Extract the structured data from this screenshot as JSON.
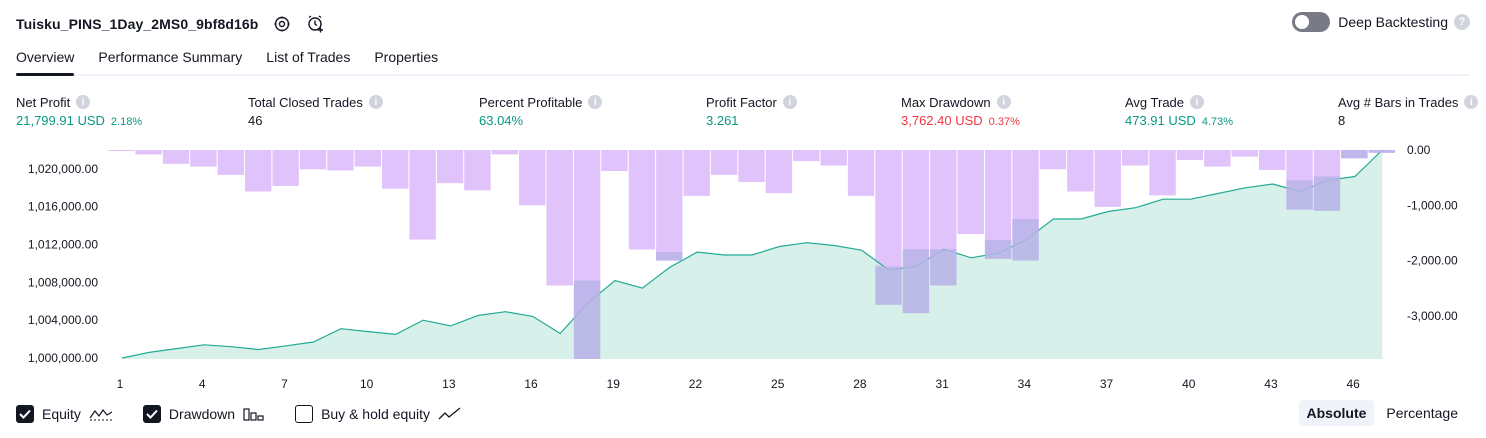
{
  "header": {
    "strategy_name": "Tuisku_PINS_1Day_2MS0_9bf8d16b",
    "icons": [
      "settings-icon",
      "add-alert-icon"
    ],
    "deep_backtesting_label": "Deep Backtesting",
    "deep_backtesting_enabled": false
  },
  "tabs": [
    {
      "label": "Overview",
      "active": true
    },
    {
      "label": "Performance Summary",
      "active": false
    },
    {
      "label": "List of Trades",
      "active": false
    },
    {
      "label": "Properties",
      "active": false
    }
  ],
  "metrics": [
    {
      "title": "Net Profit",
      "value": "21,799.91 USD",
      "pct": "2.18%",
      "color": "#089981"
    },
    {
      "title": "Total Closed Trades",
      "value": "46",
      "pct": "",
      "color": "#131722"
    },
    {
      "title": "Percent Profitable",
      "value": "63.04%",
      "pct": "",
      "color": "#089981"
    },
    {
      "title": "Profit Factor",
      "value": "3.261",
      "pct": "",
      "color": "#089981"
    },
    {
      "title": "Max Drawdown",
      "value": "3,762.40 USD",
      "pct": "0.37%",
      "color": "#f23645"
    },
    {
      "title": "Avg Trade",
      "value": "473.91 USD",
      "pct": "4.73%",
      "color": "#089981"
    },
    {
      "title": "Avg # Bars in Trades",
      "value": "8",
      "pct": "",
      "color": "#131722"
    }
  ],
  "legend": {
    "equity_label": "Equity",
    "equity_checked": true,
    "drawdown_label": "Drawdown",
    "drawdown_checked": true,
    "buyhold_label": "Buy & hold equity",
    "buyhold_checked": false
  },
  "mode": {
    "absolute_label": "Absolute",
    "percentage_label": "Percentage",
    "active": "Absolute"
  },
  "colors": {
    "equity_line": "#22ab94",
    "equity_fill": "#c9ebe3",
    "drawdown": "#e1c3fb",
    "drawdown_overlap": "#b8b4e8"
  },
  "chart_data": {
    "type": "line+bar",
    "x": [
      1,
      2,
      3,
      4,
      5,
      6,
      7,
      8,
      9,
      10,
      11,
      12,
      13,
      14,
      15,
      16,
      17,
      18,
      19,
      20,
      21,
      22,
      23,
      24,
      25,
      26,
      27,
      28,
      29,
      30,
      31,
      32,
      33,
      34,
      35,
      36,
      37,
      38,
      39,
      40,
      41,
      42,
      43,
      44,
      45,
      46,
      47
    ],
    "x_ticks": [
      "1",
      "4",
      "7",
      "10",
      "13",
      "16",
      "19",
      "22",
      "25",
      "28",
      "31",
      "34",
      "37",
      "40",
      "43",
      "46"
    ],
    "series": [
      {
        "name": "Equity",
        "axis": "left",
        "values": [
          1000000,
          1000600,
          1001000,
          1001400,
          1001200,
          1000900,
          1001300,
          1001700,
          1003100,
          1002800,
          1002500,
          1004000,
          1003400,
          1004500,
          1004900,
          1004400,
          1002600,
          1005800,
          1008200,
          1007400,
          1009600,
          1011200,
          1010900,
          1010900,
          1011800,
          1012200,
          1011900,
          1011400,
          1009300,
          1009700,
          1011500,
          1010600,
          1011100,
          1012500,
          1014700,
          1014700,
          1015500,
          1015900,
          1016800,
          1016800,
          1017400,
          1018000,
          1018400,
          1017600,
          1018800,
          1019200,
          1022000
        ]
      },
      {
        "name": "Drawdown",
        "axis": "right",
        "values": [
          0,
          -80,
          -250,
          -300,
          -450,
          -750,
          -650,
          -350,
          -370,
          -300,
          -700,
          -1620,
          -600,
          -730,
          -80,
          -1000,
          -2450,
          -3780,
          -380,
          -1800,
          -2000,
          -830,
          -450,
          -580,
          -780,
          -200,
          -280,
          -830,
          -2800,
          -2950,
          -2450,
          -1520,
          -1970,
          -2000,
          -350,
          -750,
          -1030,
          -280,
          -820,
          -180,
          -300,
          -120,
          -360,
          -1080,
          -1100,
          -150,
          -50
        ]
      }
    ],
    "left_ticks": [
      "1,000,000.00",
      "1,004,000.00",
      "1,008,000.00",
      "1,012,000.00",
      "1,016,000.00",
      "1,020,000.00"
    ],
    "left_ylim": [
      999900,
      1022000
    ],
    "right_ticks": [
      "0.00",
      "-1,000.00",
      "-2,000.00",
      "-3,000.00"
    ],
    "right_ylim": [
      -3780,
      0
    ],
    "grid": false
  }
}
